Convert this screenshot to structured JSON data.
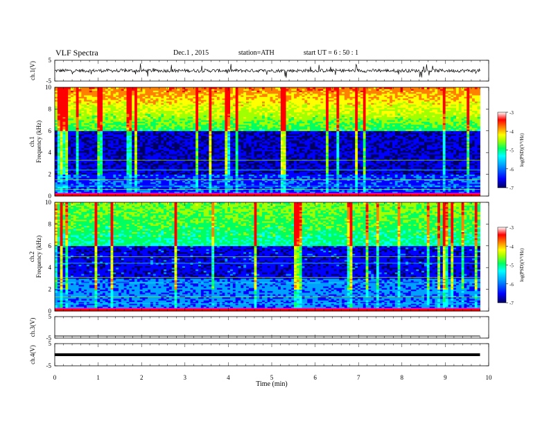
{
  "header": {
    "title": "VLF  Spectra",
    "date": "Dec.1  , 2015",
    "station": "station=ATH",
    "start": "start  UT  =   6  : 50 : 1"
  },
  "chart_data": [
    {
      "type": "line",
      "panel": "ch1-waveform",
      "ylabel": "ch.1(V)",
      "ylim": [
        -5,
        5
      ],
      "yticks": [
        "5",
        "-5"
      ],
      "baseline": 0,
      "trace_color": "#000000"
    },
    {
      "type": "heatmap",
      "panel": "ch1-spectrogram",
      "ylabel_line1": "ch.1",
      "ylabel_line2": "Frequency (kHz)",
      "ylim": [
        0,
        10
      ],
      "yticks": [
        "0",
        "2",
        "4",
        "6",
        "8",
        "10"
      ],
      "colorbar": {
        "label": "log(PSD)(V²/Hz)",
        "range": [
          -7,
          -3
        ],
        "ticks": [
          "-3",
          "-4",
          "-5",
          "-6",
          "-7"
        ]
      }
    },
    {
      "type": "heatmap",
      "panel": "ch2-spectrogram",
      "ylabel_line1": "ch.2",
      "ylabel_line2": "Frequency (kHz)",
      "ylim": [
        0,
        10
      ],
      "yticks": [
        "0",
        "2",
        "4",
        "6",
        "8",
        "10"
      ],
      "colorbar": {
        "label": "log(PSD)(V²/Hz)",
        "range": [
          -7,
          -3
        ],
        "ticks": [
          "-3",
          "-4",
          "-5",
          "-6",
          "-7"
        ]
      }
    },
    {
      "type": "line",
      "panel": "ch3-waveform",
      "ylabel": "ch.3(V)",
      "ylim": [
        -5,
        5
      ],
      "yticks": [
        "5",
        "-5"
      ],
      "trace_color": "#000000"
    },
    {
      "type": "line",
      "panel": "ch4-waveform",
      "ylabel": "ch.4(V)",
      "ylim": [
        -5,
        5
      ],
      "yticks": [
        "5",
        "-5"
      ],
      "trace_color": "#000000"
    }
  ],
  "x_axis": {
    "label": "Time  (min)",
    "range": [
      0,
      10
    ],
    "ticks": [
      "0",
      "1",
      "2",
      "3",
      "4",
      "5",
      "6",
      "7",
      "8",
      "9",
      "10"
    ],
    "data_end": 9.8
  },
  "colors": {
    "colormap": [
      "#000060",
      "#0000ff",
      "#00a0ff",
      "#00ffff",
      "#00ff60",
      "#a0ff00",
      "#ffff00",
      "#ff8000",
      "#ff0000",
      "#ffffff"
    ]
  }
}
